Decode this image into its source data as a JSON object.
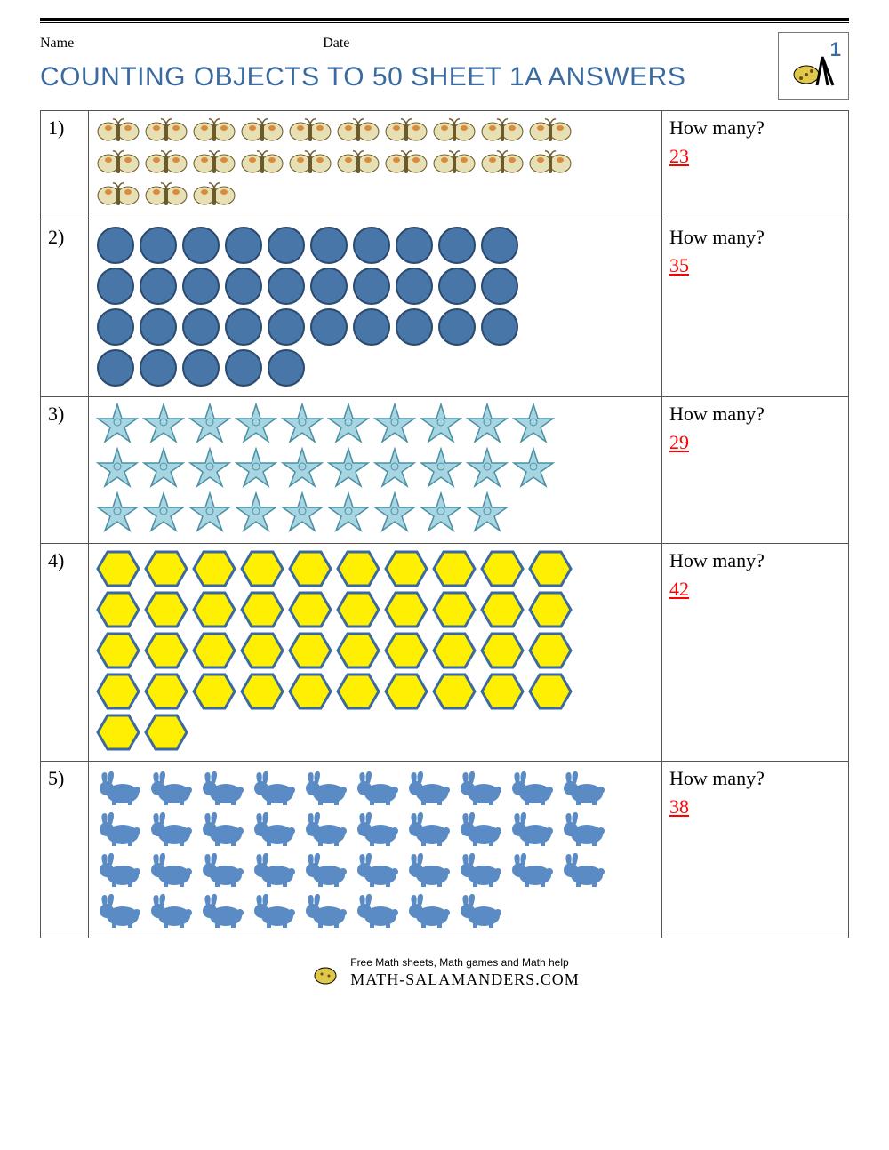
{
  "header": {
    "name_label": "Name",
    "date_label": "Date",
    "title": "COUNTING OBJECTS TO 50 SHEET 1A ANSWERS",
    "grade_badge": "1"
  },
  "question_label": "How many?",
  "colors": {
    "title": "#3b6aa0",
    "answer": "#ff0000",
    "circle_fill": "#4876a8",
    "circle_stroke": "#2a4a6e",
    "butterfly_body": "#e8e0b5",
    "butterfly_spot": "#d98a3a",
    "starfish_fill": "#a8d5e2",
    "starfish_stroke": "#4a90a4",
    "hex_fill": "#ffef00",
    "hex_stroke": "#3b6aa0",
    "rabbit_fill": "#5b8bc4"
  },
  "problems": [
    {
      "num": "1)",
      "icon": "butterfly",
      "per_row": 10,
      "rows": [
        10,
        10,
        3
      ],
      "answer": "23"
    },
    {
      "num": "2)",
      "icon": "circle",
      "per_row": 10,
      "rows": [
        10,
        10,
        10,
        5
      ],
      "answer": "35"
    },
    {
      "num": "3)",
      "icon": "starfish",
      "per_row": 10,
      "rows": [
        10,
        10,
        9
      ],
      "answer": "29"
    },
    {
      "num": "4)",
      "icon": "hexagon",
      "per_row": 10,
      "rows": [
        10,
        10,
        10,
        10,
        2
      ],
      "answer": "42"
    },
    {
      "num": "5)",
      "icon": "rabbit",
      "per_row": 10,
      "rows": [
        10,
        10,
        10,
        8
      ],
      "answer": "38"
    }
  ],
  "footer": {
    "tagline": "Free Math sheets, Math games and Math help",
    "brand": "MATH-SALAMANDERS.COM"
  }
}
